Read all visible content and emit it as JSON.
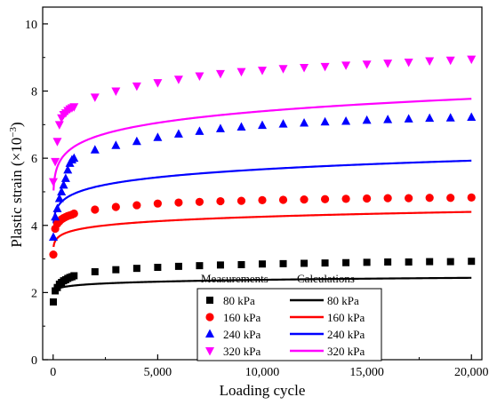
{
  "chart_data": {
    "type": "scatter",
    "title": "",
    "xlabel": "Loading cycle",
    "ylabel_main": "Plastic strain (×10",
    "ylabel_sup": "−3",
    "ylabel_end": ")",
    "xlim": [
      -500,
      20500
    ],
    "ylim": [
      0,
      10.5
    ],
    "xticks": [
      0,
      5000,
      10000,
      15000,
      20000
    ],
    "xtick_labels": [
      "0",
      "5,000",
      "10,000",
      "15,000",
      "20,000"
    ],
    "yticks": [
      0,
      2,
      4,
      6,
      8,
      10
    ],
    "ytick_labels": [
      "0",
      "2",
      "4",
      "6",
      "8",
      "10"
    ],
    "grid": false,
    "legend": {
      "placement": "bottom-right",
      "header_measurements": "Measurements",
      "header_calculations": "Calculations"
    },
    "x": [
      10,
      100,
      200,
      300,
      400,
      500,
      600,
      700,
      800,
      900,
      1000,
      2000,
      3000,
      4000,
      5000,
      6000,
      7000,
      8000,
      9000,
      10000,
      11000,
      12000,
      13000,
      14000,
      15000,
      16000,
      17000,
      18000,
      19000,
      20000
    ],
    "series": [
      {
        "name": "80 kPa",
        "color": "#000000",
        "marker": "square",
        "measured": [
          1.72,
          2.05,
          2.15,
          2.25,
          2.3,
          2.35,
          2.38,
          2.42,
          2.45,
          2.47,
          2.5,
          2.62,
          2.68,
          2.72,
          2.75,
          2.78,
          2.8,
          2.82,
          2.83,
          2.85,
          2.86,
          2.87,
          2.88,
          2.89,
          2.9,
          2.91,
          2.91,
          2.92,
          2.92,
          2.93
        ],
        "calc": {
          "a": 1.88,
          "b": 0.33,
          "c": 0.1,
          "x0": 1
        }
      },
      {
        "name": "160 kPa",
        "color": "#ff0000",
        "marker": "circle",
        "measured": [
          3.13,
          3.9,
          4.05,
          4.12,
          4.18,
          4.22,
          4.25,
          4.28,
          4.3,
          4.32,
          4.35,
          4.47,
          4.55,
          4.6,
          4.65,
          4.68,
          4.7,
          4.72,
          4.73,
          4.75,
          4.76,
          4.77,
          4.78,
          4.79,
          4.8,
          4.81,
          4.81,
          4.82,
          4.82,
          4.83
        ],
        "calc": {
          "a": 3.1,
          "b": 0.66,
          "c": 0.11,
          "x0": 1
        }
      },
      {
        "name": "240 kPa",
        "color": "#0000ff",
        "marker": "triangle-up",
        "measured": [
          3.65,
          4.25,
          4.5,
          4.8,
          5.0,
          5.2,
          5.4,
          5.65,
          5.85,
          5.95,
          6.0,
          6.25,
          6.38,
          6.5,
          6.62,
          6.72,
          6.8,
          6.88,
          6.93,
          6.98,
          7.02,
          7.05,
          7.08,
          7.1,
          7.13,
          7.15,
          7.17,
          7.19,
          7.2,
          7.22
        ],
        "calc": {
          "a": 3.6,
          "b": 1.18,
          "c": 0.11,
          "x0": 1
        }
      },
      {
        "name": "320 kPa",
        "color": "#ff00ff",
        "marker": "triangle-down",
        "measured": [
          5.3,
          5.9,
          6.5,
          7.0,
          7.2,
          7.3,
          7.35,
          7.42,
          7.47,
          7.5,
          7.53,
          7.82,
          8.0,
          8.15,
          8.25,
          8.35,
          8.45,
          8.52,
          8.58,
          8.62,
          8.67,
          8.7,
          8.73,
          8.77,
          8.8,
          8.83,
          8.86,
          8.9,
          8.92,
          8.95
        ],
        "calc": {
          "a": 4.35,
          "b": 1.87,
          "c": 0.105,
          "x0": 1
        }
      }
    ]
  }
}
